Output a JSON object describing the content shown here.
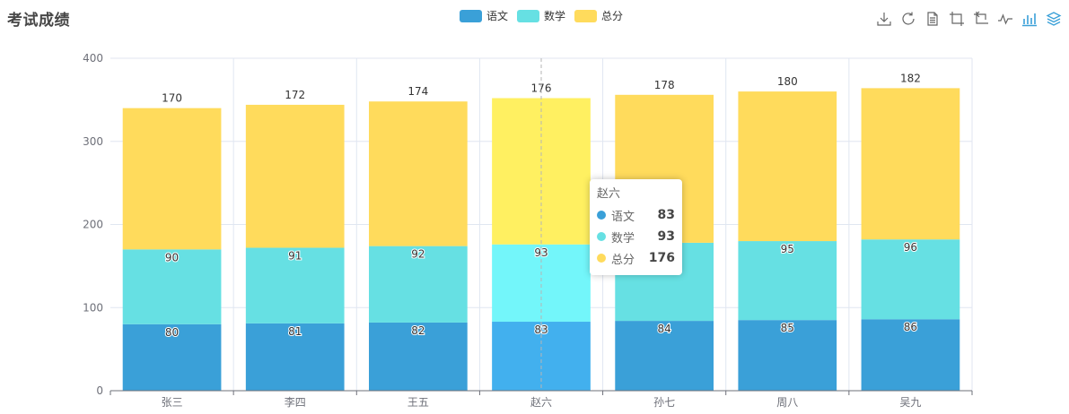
{
  "chart_data": {
    "type": "bar",
    "title": "考试成绩",
    "categories": [
      "张三",
      "李四",
      "王五",
      "赵六",
      "孙七",
      "周八",
      "吴九"
    ],
    "series": [
      {
        "name": "语文",
        "values": [
          80,
          81,
          82,
          83,
          84,
          85,
          86
        ]
      },
      {
        "name": "数学",
        "values": [
          90,
          91,
          92,
          93,
          94,
          95,
          96
        ]
      },
      {
        "name": "总分",
        "values": [
          170,
          172,
          174,
          176,
          178,
          180,
          182
        ]
      }
    ],
    "stacked": true,
    "ylim": [
      0,
      400
    ],
    "yticks": [
      0,
      100,
      200,
      300,
      400
    ],
    "xlabel": "",
    "ylabel": "",
    "legend_position": "top-center",
    "highlighted_category": "赵六"
  },
  "colors": {
    "series": [
      "#3aa0d8",
      "#66e0e3",
      "#ffdb5c"
    ],
    "series_highlight": [
      "#42b0ee",
      "#73f6fa",
      "#fff061"
    ],
    "axis": "#6e7079",
    "grid": "#e0e6f1",
    "label": "#333333"
  },
  "legend": {
    "items": [
      {
        "label": "语文",
        "color": "#3aa0d8"
      },
      {
        "label": "数学",
        "color": "#66e0e3"
      },
      {
        "label": "总分",
        "color": "#ffdb5c"
      }
    ]
  },
  "toolbox": {
    "items": [
      {
        "icon": "download-icon"
      },
      {
        "icon": "refresh-icon"
      },
      {
        "icon": "data-view-icon"
      },
      {
        "icon": "zoom-icon"
      },
      {
        "icon": "zoom-reset-icon"
      },
      {
        "icon": "line-chart-icon"
      },
      {
        "icon": "bar-chart-icon"
      },
      {
        "icon": "stack-icon"
      }
    ],
    "active_color": "#3aa0d8",
    "color": "#666666"
  },
  "tooltip": {
    "title": "赵六",
    "rows": [
      {
        "name": "语文",
        "value": "83",
        "color": "#3aa0d8"
      },
      {
        "name": "数学",
        "value": "93",
        "color": "#66e0e3"
      },
      {
        "name": "总分",
        "value": "176",
        "color": "#ffdb5c"
      }
    ]
  }
}
